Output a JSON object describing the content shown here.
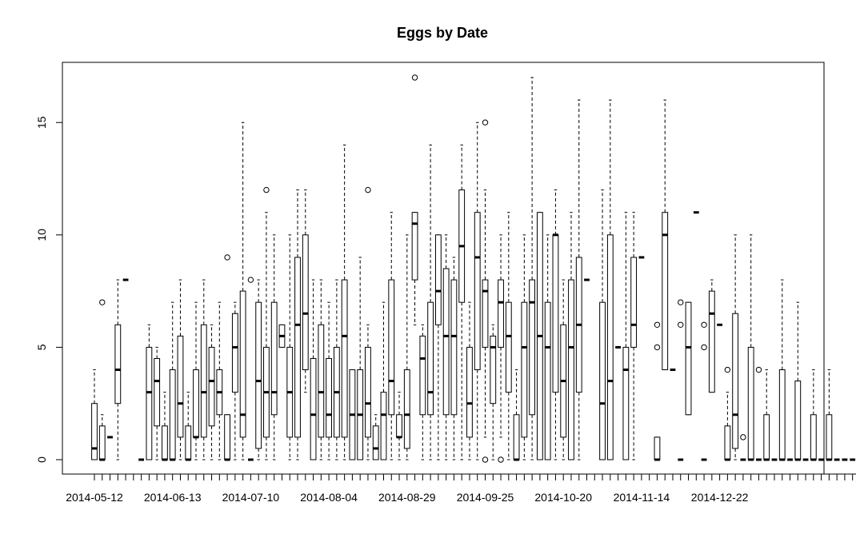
{
  "chart_data": {
    "type": "boxplot",
    "title": "Eggs by Date",
    "xlabel": "",
    "ylabel": "",
    "ylim": [
      0,
      17
    ],
    "y_ticks": [
      0,
      5,
      10,
      15
    ],
    "x_tick_labels": [
      "2014-05-12",
      "2014-06-13",
      "2014-07-10",
      "2014-08-04",
      "2014-08-29",
      "2014-09-25",
      "2014-10-20",
      "2014-11-14",
      "2014-12-22"
    ],
    "grid": false,
    "boxes": [
      {
        "q1": 0,
        "med": 0.5,
        "q3": 2.5,
        "lo": 0,
        "hi": 4,
        "out": []
      },
      {
        "q1": 0,
        "med": 0,
        "q3": 1.5,
        "lo": 0,
        "hi": 2,
        "out": [
          7
        ]
      },
      {
        "q1": 1,
        "med": 1,
        "q3": 1,
        "lo": 1,
        "hi": 1,
        "out": []
      },
      {
        "q1": 2.5,
        "med": 4,
        "q3": 6,
        "lo": 0,
        "hi": 8,
        "out": []
      },
      {
        "q1": 8,
        "med": 8,
        "q3": 8,
        "lo": 8,
        "hi": 8,
        "out": []
      },
      null,
      {
        "q1": 0,
        "med": 0,
        "q3": 0,
        "lo": 0,
        "hi": 0,
        "out": []
      },
      {
        "q1": 0,
        "med": 3,
        "q3": 5,
        "lo": 0,
        "hi": 6,
        "out": []
      },
      {
        "q1": 1.5,
        "med": 3.5,
        "q3": 4.5,
        "lo": 0,
        "hi": 5,
        "out": []
      },
      {
        "q1": 0,
        "med": 0,
        "q3": 1.5,
        "lo": 0,
        "hi": 3,
        "out": []
      },
      {
        "q1": 0,
        "med": 0,
        "q3": 4,
        "lo": 0,
        "hi": 7,
        "out": []
      },
      {
        "q1": 1,
        "med": 2.5,
        "q3": 5.5,
        "lo": 0,
        "hi": 8,
        "out": []
      },
      {
        "q1": 0,
        "med": 0,
        "q3": 1.5,
        "lo": 0,
        "hi": 3,
        "out": []
      },
      {
        "q1": 1,
        "med": 1,
        "q3": 4,
        "lo": 0,
        "hi": 7,
        "out": []
      },
      {
        "q1": 1,
        "med": 3,
        "q3": 6,
        "lo": 0,
        "hi": 8,
        "out": []
      },
      {
        "q1": 1.5,
        "med": 3.5,
        "q3": 5,
        "lo": 0,
        "hi": 6,
        "out": []
      },
      {
        "q1": 2,
        "med": 3,
        "q3": 4,
        "lo": 0,
        "hi": 7,
        "out": []
      },
      {
        "q1": 0,
        "med": 0,
        "q3": 2,
        "lo": 0,
        "hi": 2,
        "out": [
          9
        ]
      },
      {
        "q1": 3,
        "med": 5,
        "q3": 6.5,
        "lo": 0,
        "hi": 7,
        "out": []
      },
      {
        "q1": 1,
        "med": 2,
        "q3": 7.5,
        "lo": 0,
        "hi": 15,
        "out": []
      },
      {
        "q1": 0,
        "med": 0,
        "q3": 0,
        "lo": 0,
        "hi": 0,
        "out": [
          8
        ]
      },
      {
        "q1": 0.5,
        "med": 3.5,
        "q3": 7,
        "lo": 0,
        "hi": 8,
        "out": []
      },
      {
        "q1": 1,
        "med": 3,
        "q3": 5,
        "lo": 0,
        "hi": 11,
        "out": [
          12
        ]
      },
      {
        "q1": 2,
        "med": 3,
        "q3": 7,
        "lo": 0,
        "hi": 10,
        "out": []
      },
      {
        "q1": 5,
        "med": 5.5,
        "q3": 6,
        "lo": 5,
        "hi": 6,
        "out": []
      },
      {
        "q1": 1,
        "med": 3,
        "q3": 5,
        "lo": 0,
        "hi": 10,
        "out": []
      },
      {
        "q1": 1,
        "med": 6,
        "q3": 9,
        "lo": 0,
        "hi": 12,
        "out": []
      },
      {
        "q1": 4,
        "med": 6.5,
        "q3": 10,
        "lo": 3,
        "hi": 12,
        "out": []
      },
      {
        "q1": 0,
        "med": 2,
        "q3": 4.5,
        "lo": 0,
        "hi": 8,
        "out": []
      },
      {
        "q1": 1,
        "med": 3,
        "q3": 6,
        "lo": 0,
        "hi": 8,
        "out": []
      },
      {
        "q1": 1,
        "med": 2,
        "q3": 4.5,
        "lo": 0,
        "hi": 7,
        "out": []
      },
      {
        "q1": 1,
        "med": 3,
        "q3": 5,
        "lo": 0,
        "hi": 8,
        "out": []
      },
      {
        "q1": 1,
        "med": 5.5,
        "q3": 8,
        "lo": 0,
        "hi": 14,
        "out": []
      },
      {
        "q1": 0,
        "med": 2,
        "q3": 4,
        "lo": 0,
        "hi": 4,
        "out": []
      },
      {
        "q1": 0,
        "med": 2,
        "q3": 4,
        "lo": 0,
        "hi": 9,
        "out": []
      },
      {
        "q1": 1,
        "med": 2.5,
        "q3": 5,
        "lo": 0,
        "hi": 6,
        "out": [
          12
        ]
      },
      {
        "q1": 0,
        "med": 0.5,
        "q3": 1.5,
        "lo": 0,
        "hi": 2,
        "out": []
      },
      {
        "q1": 0,
        "med": 2,
        "q3": 3,
        "lo": 0,
        "hi": 7,
        "out": []
      },
      {
        "q1": 2,
        "med": 3.5,
        "q3": 8,
        "lo": 0,
        "hi": 11,
        "out": []
      },
      {
        "q1": 1,
        "med": 1,
        "q3": 2,
        "lo": 0,
        "hi": 3,
        "out": []
      },
      {
        "q1": 0.5,
        "med": 2,
        "q3": 4,
        "lo": 0,
        "hi": 10,
        "out": []
      },
      {
        "q1": 8,
        "med": 10.5,
        "q3": 11,
        "lo": 6,
        "hi": 11,
        "out": [
          17
        ]
      },
      {
        "q1": 2,
        "med": 4.5,
        "q3": 5.5,
        "lo": 0,
        "hi": 6,
        "out": []
      },
      {
        "q1": 2,
        "med": 3,
        "q3": 7,
        "lo": 0,
        "hi": 14,
        "out": []
      },
      {
        "q1": 6,
        "med": 7.5,
        "q3": 10,
        "lo": 0,
        "hi": 10,
        "out": []
      },
      {
        "q1": 2,
        "med": 5.5,
        "q3": 8.5,
        "lo": 0,
        "hi": 10,
        "out": []
      },
      {
        "q1": 2,
        "med": 5.5,
        "q3": 8,
        "lo": 0,
        "hi": 9,
        "out": []
      },
      {
        "q1": 7,
        "med": 9.5,
        "q3": 12,
        "lo": 0,
        "hi": 14,
        "out": []
      },
      {
        "q1": 1,
        "med": 2.5,
        "q3": 5,
        "lo": 0,
        "hi": 7,
        "out": []
      },
      {
        "q1": 4,
        "med": 9,
        "q3": 11,
        "lo": 0,
        "hi": 15,
        "out": []
      },
      {
        "q1": 5,
        "med": 7.5,
        "q3": 8,
        "lo": 1,
        "hi": 12,
        "out": [
          0,
          15
        ]
      },
      {
        "q1": 2.5,
        "med": 5,
        "q3": 5.5,
        "lo": 0,
        "hi": 6,
        "out": []
      },
      {
        "q1": 5,
        "med": 7,
        "q3": 8,
        "lo": 1,
        "hi": 10,
        "out": [
          0
        ]
      },
      {
        "q1": 3,
        "med": 5.5,
        "q3": 7,
        "lo": 0,
        "hi": 11,
        "out": []
      },
      {
        "q1": 0,
        "med": 0,
        "q3": 2,
        "lo": 0,
        "hi": 4,
        "out": []
      },
      {
        "q1": 1,
        "med": 5,
        "q3": 7,
        "lo": 0,
        "hi": 10,
        "out": []
      },
      {
        "q1": 2,
        "med": 7,
        "q3": 8,
        "lo": 0,
        "hi": 17,
        "out": []
      },
      {
        "q1": 0,
        "med": 5.5,
        "q3": 11,
        "lo": 0,
        "hi": 11,
        "out": []
      },
      {
        "q1": 0,
        "med": 5,
        "q3": 7,
        "lo": 0,
        "hi": 10,
        "out": []
      },
      {
        "q1": 3,
        "med": 10,
        "q3": 10,
        "lo": 0,
        "hi": 12,
        "out": []
      },
      {
        "q1": 1,
        "med": 3.5,
        "q3": 6,
        "lo": 0,
        "hi": 8,
        "out": []
      },
      {
        "q1": 0,
        "med": 5,
        "q3": 8,
        "lo": 0,
        "hi": 11,
        "out": []
      },
      {
        "q1": 3,
        "med": 6,
        "q3": 9,
        "lo": 0,
        "hi": 16,
        "out": []
      },
      {
        "q1": 8,
        "med": 8,
        "q3": 8,
        "lo": 8,
        "hi": 8,
        "out": []
      },
      null,
      {
        "q1": 0,
        "med": 2.5,
        "q3": 7,
        "lo": 0,
        "hi": 12,
        "out": []
      },
      {
        "q1": 0,
        "med": 3.5,
        "q3": 10,
        "lo": 0,
        "hi": 16,
        "out": []
      },
      {
        "q1": 5,
        "med": 5,
        "q3": 5,
        "lo": 5,
        "hi": 5,
        "out": []
      },
      {
        "q1": 0,
        "med": 4,
        "q3": 5,
        "lo": 0,
        "hi": 11,
        "out": []
      },
      {
        "q1": 5,
        "med": 6,
        "q3": 9,
        "lo": 0,
        "hi": 11,
        "out": []
      },
      {
        "q1": 9,
        "med": 9,
        "q3": 9,
        "lo": 9,
        "hi": 9,
        "out": []
      },
      null,
      {
        "q1": 0,
        "med": 0,
        "q3": 1,
        "lo": 0,
        "hi": 1,
        "out": [
          5,
          6
        ]
      },
      {
        "q1": 4,
        "med": 10,
        "q3": 11,
        "lo": 4,
        "hi": 16,
        "out": []
      },
      {
        "q1": 4,
        "med": 4,
        "q3": 4,
        "lo": 4,
        "hi": 4,
        "out": []
      },
      {
        "q1": 0,
        "med": 0,
        "q3": 0,
        "lo": 0,
        "hi": 0,
        "out": [
          6,
          7
        ]
      },
      {
        "q1": 2,
        "med": 5,
        "q3": 7,
        "lo": 2,
        "hi": 7,
        "out": []
      },
      {
        "q1": 11,
        "med": 11,
        "q3": 11,
        "lo": 11,
        "hi": 11,
        "out": []
      },
      {
        "q1": 0,
        "med": 0,
        "q3": 0,
        "lo": 0,
        "hi": 0,
        "out": [
          5,
          6
        ]
      },
      {
        "q1": 3,
        "med": 6.5,
        "q3": 7.5,
        "lo": 3,
        "hi": 8,
        "out": []
      },
      {
        "q1": 6,
        "med": 6,
        "q3": 6,
        "lo": 6,
        "hi": 6,
        "out": []
      },
      {
        "q1": 0,
        "med": 0,
        "q3": 1.5,
        "lo": 0,
        "hi": 3,
        "out": [
          4
        ]
      },
      {
        "q1": 0.5,
        "med": 2,
        "q3": 6.5,
        "lo": 0,
        "hi": 10,
        "out": []
      },
      {
        "q1": 0,
        "med": 0,
        "q3": 0,
        "lo": 0,
        "hi": 0,
        "out": [
          1
        ]
      },
      {
        "q1": 0,
        "med": 0,
        "q3": 5,
        "lo": 0,
        "hi": 10,
        "out": []
      },
      {
        "q1": 0,
        "med": 0,
        "q3": 0,
        "lo": 0,
        "hi": 0,
        "out": [
          4
        ]
      },
      {
        "q1": 0,
        "med": 0,
        "q3": 2,
        "lo": 0,
        "hi": 4,
        "out": []
      },
      {
        "q1": 0,
        "med": 0,
        "q3": 0,
        "lo": 0,
        "hi": 0,
        "out": []
      },
      {
        "q1": 0,
        "med": 0,
        "q3": 4,
        "lo": 0,
        "hi": 8,
        "out": []
      },
      {
        "q1": 0,
        "med": 0,
        "q3": 0,
        "lo": 0,
        "hi": 0,
        "out": []
      },
      {
        "q1": 0,
        "med": 0,
        "q3": 3.5,
        "lo": 0,
        "hi": 7,
        "out": []
      },
      {
        "q1": 0,
        "med": 0,
        "q3": 0,
        "lo": 0,
        "hi": 0,
        "out": []
      },
      {
        "q1": 0,
        "med": 0,
        "q3": 2,
        "lo": 0,
        "hi": 4,
        "out": []
      },
      {
        "q1": 0,
        "med": 0,
        "q3": 0,
        "lo": 0,
        "hi": 0,
        "out": []
      },
      {
        "q1": 0,
        "med": 0,
        "q3": 2,
        "lo": 0,
        "hi": 4,
        "out": []
      },
      {
        "q1": 0,
        "med": 0,
        "q3": 0,
        "lo": 0,
        "hi": 0,
        "out": []
      },
      {
        "q1": 0,
        "med": 0,
        "q3": 0,
        "lo": 0,
        "hi": 0,
        "out": []
      },
      {
        "q1": 0,
        "med": 0,
        "q3": 0,
        "lo": 0,
        "hi": 0,
        "out": []
      },
      {
        "q1": 0,
        "med": 0,
        "q3": 0,
        "lo": 0,
        "hi": 0,
        "out": []
      },
      {
        "q1": 0,
        "med": 0,
        "q3": 0,
        "lo": 0,
        "hi": 0,
        "out": []
      },
      {
        "q1": 0,
        "med": 0,
        "q3": 0,
        "lo": 0,
        "hi": 0,
        "out": []
      },
      {
        "q1": 0,
        "med": 0,
        "q3": 0,
        "lo": 0,
        "hi": 0,
        "out": []
      },
      {
        "q1": 0,
        "med": 0,
        "q3": 0,
        "lo": 0,
        "hi": 0,
        "out": []
      },
      {
        "q1": 0,
        "med": 0,
        "q3": 0,
        "lo": 0,
        "hi": 0,
        "out": []
      }
    ]
  }
}
